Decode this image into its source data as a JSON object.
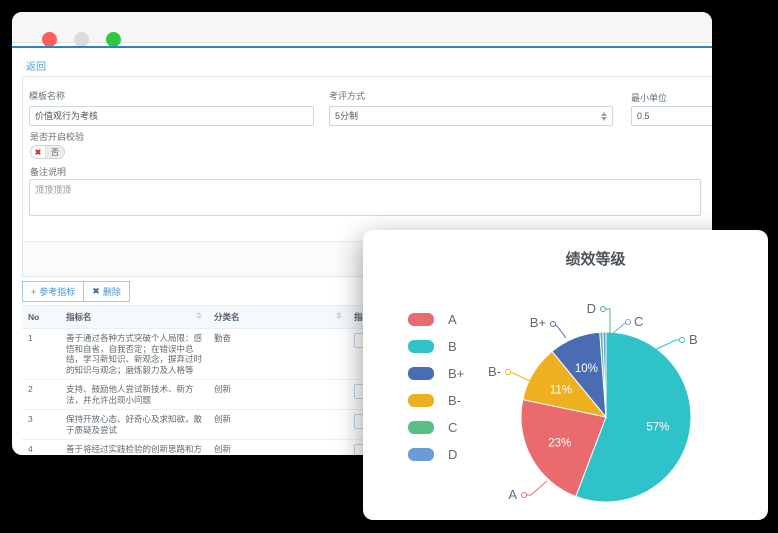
{
  "colors": {
    "accent_line": "#2e84bd",
    "link": "#4aa3dc",
    "button": "#4494cf"
  },
  "window": {
    "titlebar": {
      "traffic_lights": [
        "#ff5d5b",
        "#dcdcdc",
        "#2fc940"
      ]
    },
    "back_link": "返回",
    "form": {
      "template_name": {
        "label": "模板名称",
        "value": "价值观行为考核"
      },
      "eval_method": {
        "label": "考评方式",
        "value": "5分制"
      },
      "min_unit": {
        "label": "最小单位",
        "value": "0.5"
      },
      "validation": {
        "label": "是否开启校验",
        "value": "否",
        "icon": "✖"
      },
      "remark": {
        "label": "备注说明",
        "value": "顶顶顶顶"
      }
    },
    "toolbar": {
      "add_button": {
        "icon": "+",
        "label": "参考指标"
      },
      "delete_button": {
        "icon": "✖",
        "label": "删除"
      }
    },
    "table": {
      "columns": [
        "No",
        "指标名",
        "分类名",
        "指标分值"
      ],
      "rows": [
        {
          "no": "1",
          "name": "善于通过各种方式突破个人局限：感悟和自省，自我否定；在错误中总结，学习新知识、新观念，摒弃过时的知识与观念；磨炼毅力及人格等",
          "category": "勤奋",
          "score": ""
        },
        {
          "no": "2",
          "name": "支持、鼓励他人尝试新技术、新方法，并允许出现小问题",
          "category": "创新",
          "score": ""
        },
        {
          "no": "3",
          "name": "保持开放心态、好奇心及求知欲，敢于质疑及尝试",
          "category": "创新",
          "score": ""
        },
        {
          "no": "4",
          "name": "善于将经过实践检验的创新思路和方法文字化、制度化，纳入日常工作流程",
          "category": "创新",
          "score": ""
        }
      ]
    }
  },
  "chart_card": {
    "chart_data": {
      "type": "pie",
      "title": "绩效等级",
      "legend_position": "left",
      "legend": [
        "A",
        "B",
        "B+",
        "B-",
        "C",
        "D"
      ],
      "slices": [
        {
          "name": "A",
          "value": 23,
          "label": "23%",
          "color": "#e96b6d"
        },
        {
          "name": "B",
          "value": 57,
          "label": "57%",
          "color": "#2fc3c9"
        },
        {
          "name": "B+",
          "value": 10,
          "label": "10%",
          "color": "#4a6cb5"
        },
        {
          "name": "B-",
          "value": 11,
          "label": "11%",
          "color": "#efb01f"
        },
        {
          "name": "C",
          "value": 0.6,
          "label": "",
          "color": "#58bf87"
        },
        {
          "name": "D",
          "value": 0.6,
          "label": "",
          "color": "#6b9cd9"
        }
      ],
      "draw_order_clockwise_from_top": [
        "B",
        "A",
        "B-",
        "B+",
        "C",
        "D"
      ]
    }
  }
}
